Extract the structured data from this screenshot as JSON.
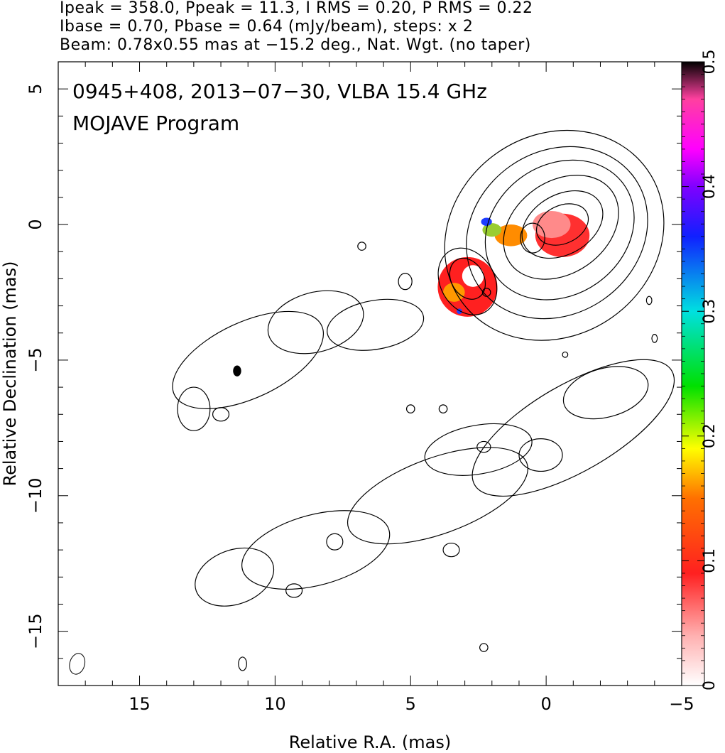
{
  "header": {
    "line1": "Ipeak = 358.0, Ppeak = 11.3, I RMS = 0.20, P RMS = 0.22",
    "line2": "Ibase = 0.70, Pbase = 0.64 (mJy/beam), steps: x 2",
    "line3": "Beam: 0.78x0.55 mas at −15.2 deg., Nat. Wgt. (no taper)"
  },
  "chart_data": {
    "type": "heatmap",
    "annotation_line1": "0945+408, 2013−07−30, VLBA 15.4 GHz",
    "annotation_line2": "MOJAVE Program",
    "xlabel": "Relative R.A. (mas)",
    "ylabel": "Relative Declination (mas)",
    "xlim": [
      18,
      -5
    ],
    "ylim": [
      -17,
      6
    ],
    "x_ticks": [
      "15",
      "10",
      "5",
      "0",
      "−5"
    ],
    "x_tick_values": [
      15,
      10,
      5,
      0,
      -5
    ],
    "y_ticks": [
      "5",
      "0",
      "−5",
      "−10",
      "−15"
    ],
    "y_tick_values": [
      5,
      0,
      -5,
      -10,
      -15
    ],
    "colorbar": {
      "range": [
        0,
        0.5
      ],
      "ticks": [
        "0",
        "0.1",
        "0.2",
        "0.3",
        "0.4",
        "0.5"
      ],
      "tick_values": [
        0,
        0.1,
        0.2,
        0.3,
        0.4,
        0.5
      ]
    },
    "beam": {
      "major_mas": 0.78,
      "minor_mas": 0.55,
      "pa_deg": -15.2
    },
    "core_contours": [
      {
        "cx": -0.3,
        "cy": -0.4,
        "rx": 4.2,
        "ry": 3.7,
        "rot": -35
      },
      {
        "cx": -0.4,
        "cy": -0.3,
        "rx": 3.5,
        "ry": 3.0,
        "rot": -35
      },
      {
        "cx": -0.5,
        "cy": -0.2,
        "rx": 2.9,
        "ry": 2.4,
        "rot": -35
      },
      {
        "cx": -0.55,
        "cy": -0.1,
        "rx": 2.3,
        "ry": 1.7,
        "rot": -35
      },
      {
        "cx": -0.6,
        "cy": 0.0,
        "rx": 1.6,
        "ry": 1.1,
        "rot": -30
      },
      {
        "cx": -0.6,
        "cy": 0.0,
        "rx": 1.0,
        "ry": 0.7,
        "rot": -25
      },
      {
        "cx": 0.5,
        "cy": -0.5,
        "rx": 0.45,
        "ry": 0.55,
        "rot": 0
      },
      {
        "cx": 2.9,
        "cy": -2.1,
        "rx": 1.3,
        "ry": 1.0,
        "rot": 60
      },
      {
        "cx": 2.9,
        "cy": -2.0,
        "rx": 0.8,
        "ry": 0.6,
        "rot": 60
      }
    ],
    "blobs": [
      {
        "cx": 11.0,
        "cy": -5.0,
        "rx": 3.0,
        "ry": 1.4,
        "rot": -25
      },
      {
        "cx": 8.5,
        "cy": -3.6,
        "rx": 1.8,
        "ry": 1.1,
        "rot": -15
      },
      {
        "cx": 6.3,
        "cy": -3.7,
        "rx": 1.8,
        "ry": 0.9,
        "rot": -10
      },
      {
        "cx": 4.0,
        "cy": -10.0,
        "rx": 3.5,
        "ry": 1.4,
        "rot": -20
      },
      {
        "cx": 8.5,
        "cy": -12.0,
        "rx": 2.8,
        "ry": 1.3,
        "rot": -15
      },
      {
        "cx": 2.5,
        "cy": -8.3,
        "rx": 2.0,
        "ry": 0.9,
        "rot": -10
      },
      {
        "cx": -1.0,
        "cy": -7.5,
        "rx": 4.2,
        "ry": 1.6,
        "rot": -30
      },
      {
        "cx": -2.2,
        "cy": -6.2,
        "rx": 1.6,
        "ry": 0.9,
        "rot": -15
      },
      {
        "cx": 0.2,
        "cy": -8.5,
        "rx": 0.8,
        "ry": 0.6,
        "rot": 0
      },
      {
        "cx": 11.5,
        "cy": -13.0,
        "rx": 1.5,
        "ry": 1.0,
        "rot": -20
      },
      {
        "cx": 13.0,
        "cy": -6.8,
        "rx": 0.6,
        "ry": 0.8,
        "rot": 0
      },
      {
        "cx": 12.0,
        "cy": -7.0,
        "rx": 0.3,
        "ry": 0.25,
        "rot": 0
      },
      {
        "cx": 9.3,
        "cy": -13.5,
        "rx": 0.3,
        "ry": 0.25,
        "rot": 0
      },
      {
        "cx": 7.8,
        "cy": -11.7,
        "rx": 0.3,
        "ry": 0.3,
        "rot": 0
      },
      {
        "cx": 5.0,
        "cy": -6.8,
        "rx": 0.15,
        "ry": 0.15,
        "rot": 0
      },
      {
        "cx": 3.8,
        "cy": -6.8,
        "rx": 0.15,
        "ry": 0.15,
        "rot": 0
      },
      {
        "cx": 6.8,
        "cy": -0.8,
        "rx": 0.15,
        "ry": 0.15,
        "rot": 0
      },
      {
        "cx": 5.2,
        "cy": -2.1,
        "rx": 0.25,
        "ry": 0.3,
        "rot": 0
      },
      {
        "cx": 2.2,
        "cy": -2.5,
        "rx": 0.15,
        "ry": 0.15,
        "rot": 0
      },
      {
        "cx": 2.3,
        "cy": -8.2,
        "rx": 0.25,
        "ry": 0.2,
        "rot": 0
      },
      {
        "cx": 3.5,
        "cy": -12.0,
        "rx": 0.3,
        "ry": 0.25,
        "rot": 0
      },
      {
        "cx": 11.2,
        "cy": -16.2,
        "rx": 0.15,
        "ry": 0.25,
        "rot": 0
      },
      {
        "cx": 2.3,
        "cy": -15.6,
        "rx": 0.15,
        "ry": 0.15,
        "rot": 0
      },
      {
        "cx": -4.0,
        "cy": -4.2,
        "rx": 0.1,
        "ry": 0.15,
        "rot": 0
      },
      {
        "cx": -3.8,
        "cy": -2.8,
        "rx": 0.1,
        "ry": 0.15,
        "rot": 0
      },
      {
        "cx": -0.7,
        "cy": -4.8,
        "rx": 0.1,
        "ry": 0.1,
        "rot": 0
      }
    ],
    "color_spots": [
      {
        "cx": -0.6,
        "cy": -0.4,
        "rx": 1.0,
        "ry": 0.8,
        "color": "#ff3030"
      },
      {
        "cx": -0.2,
        "cy": 0.0,
        "rx": 0.7,
        "ry": 0.5,
        "color": "#ff8a8a"
      },
      {
        "cx": 1.3,
        "cy": -0.4,
        "rx": 0.6,
        "ry": 0.4,
        "color": "#ff8c00"
      },
      {
        "cx": 2.0,
        "cy": -0.2,
        "rx": 0.35,
        "ry": 0.25,
        "color": "#9acd32"
      },
      {
        "cx": 2.2,
        "cy": 0.1,
        "rx": 0.2,
        "ry": 0.15,
        "color": "#1e3cff"
      },
      {
        "cx": 2.9,
        "cy": -2.3,
        "rx": 1.1,
        "ry": 1.1,
        "color": "#ff2020"
      },
      {
        "cx": 3.4,
        "cy": -2.5,
        "rx": 0.4,
        "ry": 0.35,
        "color": "#ff9900"
      },
      {
        "cx": 2.7,
        "cy": -1.9,
        "rx": 0.4,
        "ry": 0.4,
        "color": "#ffffff"
      },
      {
        "cx": 3.2,
        "cy": -3.2,
        "rx": 0.1,
        "ry": 0.1,
        "color": "#2040ff"
      },
      {
        "cx": 11.4,
        "cy": -5.4,
        "rx": 0.15,
        "ry": 0.2,
        "color": "#000000"
      }
    ]
  }
}
